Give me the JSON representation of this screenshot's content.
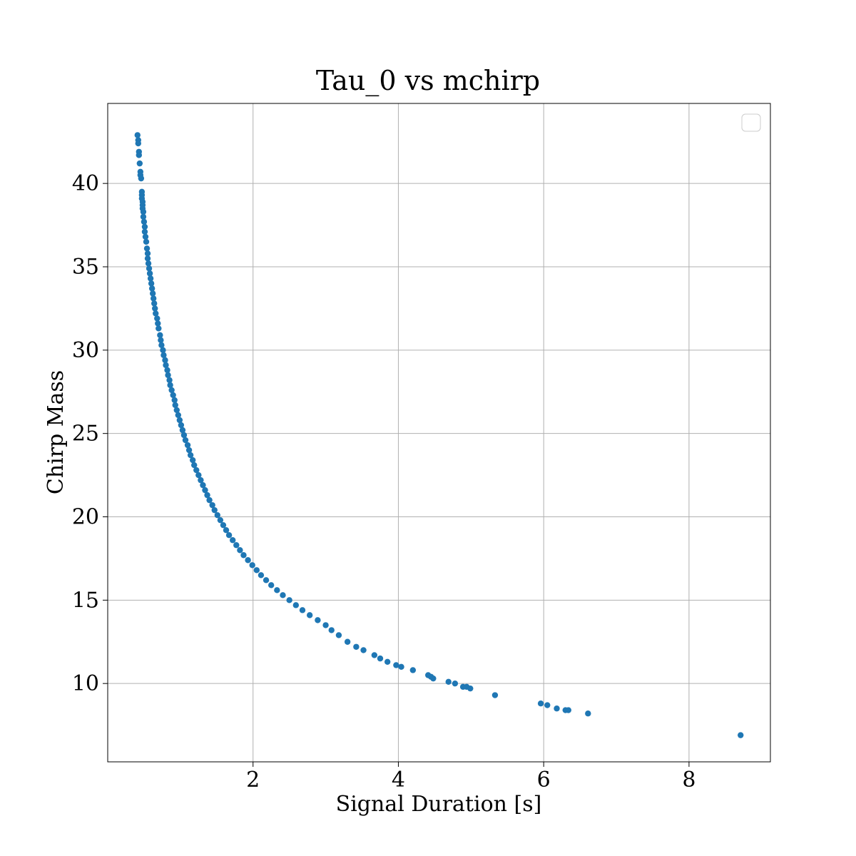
{
  "chart_data": {
    "type": "scatter",
    "title": "Tau_0 vs mchirp",
    "xlabel": "Signal Duration [s]",
    "ylabel": "Chirp Mass",
    "xlim": [
      0.0,
      9.12
    ],
    "ylim": [
      5.3,
      44.8
    ],
    "xticks": [
      2,
      4,
      6,
      8
    ],
    "yticks": [
      10,
      15,
      20,
      25,
      30,
      35,
      40
    ],
    "grid": true,
    "legend": {
      "placement": "top-right",
      "entries": []
    },
    "colors": {
      "marker": "#1f77b4",
      "grid": "#b0b0b0",
      "axes": "#000000"
    },
    "series": [
      {
        "points": [
          [
            0.41,
            42.9
          ],
          [
            0.42,
            42.6
          ],
          [
            0.42,
            42.4
          ],
          [
            0.43,
            41.9
          ],
          [
            0.43,
            41.7
          ],
          [
            0.44,
            41.2
          ],
          [
            0.45,
            40.7
          ],
          [
            0.45,
            40.5
          ],
          [
            0.46,
            40.3
          ],
          [
            0.47,
            39.5
          ],
          [
            0.47,
            39.3
          ],
          [
            0.47,
            39.1
          ],
          [
            0.48,
            38.9
          ],
          [
            0.48,
            38.7
          ],
          [
            0.48,
            38.5
          ],
          [
            0.49,
            38.3
          ],
          [
            0.49,
            38.0
          ],
          [
            0.5,
            37.7
          ],
          [
            0.51,
            37.4
          ],
          [
            0.51,
            37.1
          ],
          [
            0.52,
            36.8
          ],
          [
            0.53,
            36.5
          ],
          [
            0.54,
            36.1
          ],
          [
            0.55,
            35.8
          ],
          [
            0.55,
            35.5
          ],
          [
            0.56,
            35.2
          ],
          [
            0.57,
            34.9
          ],
          [
            0.58,
            34.6
          ],
          [
            0.59,
            34.3
          ],
          [
            0.6,
            34.0
          ],
          [
            0.61,
            33.7
          ],
          [
            0.62,
            33.4
          ],
          [
            0.63,
            33.1
          ],
          [
            0.64,
            32.8
          ],
          [
            0.65,
            32.5
          ],
          [
            0.66,
            32.2
          ],
          [
            0.68,
            31.9
          ],
          [
            0.69,
            31.6
          ],
          [
            0.7,
            31.3
          ],
          [
            0.72,
            30.9
          ],
          [
            0.73,
            30.6
          ],
          [
            0.74,
            30.3
          ],
          [
            0.76,
            30.0
          ],
          [
            0.77,
            29.7
          ],
          [
            0.79,
            29.4
          ],
          [
            0.8,
            29.1
          ],
          [
            0.82,
            28.8
          ],
          [
            0.83,
            28.5
          ],
          [
            0.85,
            28.2
          ],
          [
            0.86,
            27.9
          ],
          [
            0.88,
            27.6
          ],
          [
            0.9,
            27.3
          ],
          [
            0.92,
            27.0
          ],
          [
            0.93,
            26.7
          ],
          [
            0.95,
            26.4
          ],
          [
            0.97,
            26.1
          ],
          [
            0.99,
            25.8
          ],
          [
            1.01,
            25.5
          ],
          [
            1.03,
            25.2
          ],
          [
            1.05,
            24.9
          ],
          [
            1.07,
            24.6
          ],
          [
            1.1,
            24.3
          ],
          [
            1.12,
            24.0
          ],
          [
            1.14,
            23.7
          ],
          [
            1.17,
            23.4
          ],
          [
            1.19,
            23.1
          ],
          [
            1.22,
            22.8
          ],
          [
            1.25,
            22.5
          ],
          [
            1.28,
            22.2
          ],
          [
            1.31,
            21.9
          ],
          [
            1.34,
            21.6
          ],
          [
            1.37,
            21.3
          ],
          [
            1.4,
            21.0
          ],
          [
            1.44,
            20.7
          ],
          [
            1.47,
            20.4
          ],
          [
            1.51,
            20.1
          ],
          [
            1.55,
            19.8
          ],
          [
            1.59,
            19.5
          ],
          [
            1.63,
            19.2
          ],
          [
            1.67,
            18.9
          ],
          [
            1.72,
            18.6
          ],
          [
            1.77,
            18.3
          ],
          [
            1.82,
            18.0
          ],
          [
            1.87,
            17.7
          ],
          [
            1.93,
            17.4
          ],
          [
            1.99,
            17.1
          ],
          [
            2.05,
            16.8
          ],
          [
            2.11,
            16.5
          ],
          [
            2.18,
            16.2
          ],
          [
            2.25,
            15.9
          ],
          [
            2.33,
            15.6
          ],
          [
            2.41,
            15.3
          ],
          [
            2.5,
            15.0
          ],
          [
            2.59,
            14.7
          ],
          [
            2.68,
            14.4
          ],
          [
            2.78,
            14.1
          ],
          [
            2.89,
            13.8
          ],
          [
            3.0,
            13.5
          ],
          [
            3.08,
            13.2
          ],
          [
            3.18,
            12.9
          ],
          [
            3.3,
            12.5
          ],
          [
            3.42,
            12.2
          ],
          [
            3.52,
            12.0
          ],
          [
            3.67,
            11.7
          ],
          [
            3.75,
            11.5
          ],
          [
            3.85,
            11.3
          ],
          [
            3.97,
            11.1
          ],
          [
            4.04,
            11.0
          ],
          [
            4.2,
            10.8
          ],
          [
            4.41,
            10.5
          ],
          [
            4.45,
            10.4
          ],
          [
            4.48,
            10.3
          ],
          [
            4.69,
            10.1
          ],
          [
            4.78,
            10.0
          ],
          [
            4.89,
            9.8
          ],
          [
            4.94,
            9.8
          ],
          [
            4.99,
            9.7
          ],
          [
            5.33,
            9.3
          ],
          [
            5.96,
            8.8
          ],
          [
            6.05,
            8.7
          ],
          [
            6.18,
            8.5
          ],
          [
            6.3,
            8.4
          ],
          [
            6.34,
            8.4
          ],
          [
            6.61,
            8.2
          ],
          [
            8.71,
            6.9
          ]
        ]
      }
    ]
  }
}
